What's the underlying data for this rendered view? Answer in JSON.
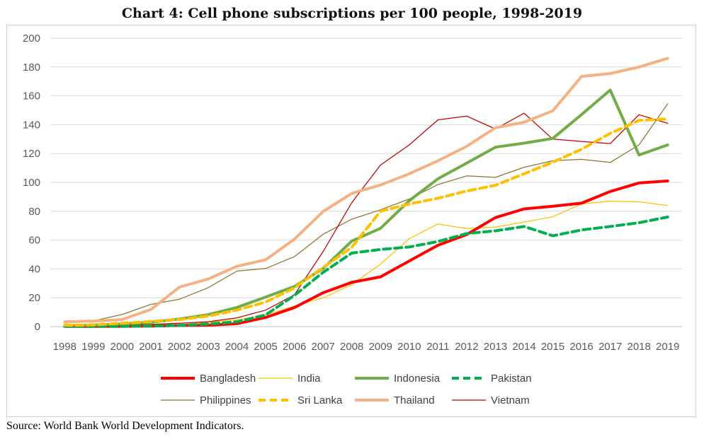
{
  "title": "Chart 4: Cell phone subscriptions per 100 people, 1998-2019",
  "source": "Source: World Bank World Development Indicators.",
  "chart_data": {
    "type": "line",
    "title": "Chart 4: Cell phone subscriptions per 100 people, 1998-2019",
    "xlabel": "",
    "ylabel": "",
    "x": [
      "1998",
      "1999",
      "2000",
      "2001",
      "2002",
      "2003",
      "2004",
      "2005",
      "2006",
      "2007",
      "2008",
      "2009",
      "2010",
      "2011",
      "2012",
      "2013",
      "2014",
      "2015",
      "2016",
      "2017",
      "2018",
      "2019"
    ],
    "ylim": [
      0,
      200
    ],
    "yticks": [
      0,
      20,
      40,
      60,
      80,
      100,
      120,
      140,
      160,
      180,
      200
    ],
    "grid": true,
    "legend_position": "bottom",
    "series": [
      {
        "name": "Bangladesh",
        "color": "#ff0000",
        "style": "solid",
        "weight": "thick",
        "values": [
          0.1,
          0.1,
          0.2,
          0.4,
          0.8,
          1.0,
          2.0,
          6.3,
          13.2,
          23.5,
          30.7,
          34.5,
          45.5,
          56.4,
          63.8,
          75.6,
          81.6,
          83.5,
          85.6,
          93.7,
          99.6,
          101.0
        ]
      },
      {
        "name": "India",
        "color": "#ffc000",
        "style": "solid",
        "weight": "thin",
        "values": [
          0.1,
          0.2,
          0.3,
          0.6,
          1.2,
          3.1,
          4.7,
          8.0,
          14.3,
          19.9,
          29.1,
          43.3,
          61.0,
          71.2,
          68.0,
          69.0,
          72.5,
          76.2,
          85.0,
          87.0,
          86.5,
          84.0
        ]
      },
      {
        "name": "Indonesia",
        "color": "#70ad47",
        "style": "solid",
        "weight": "thick",
        "values": [
          0.5,
          1.1,
          1.8,
          3.0,
          5.3,
          8.3,
          13.3,
          20.5,
          27.8,
          40.3,
          59.3,
          68.2,
          87.3,
          102.5,
          113.4,
          124.4,
          127.2,
          130.5,
          147.0,
          164.0,
          119.0,
          126.0
        ]
      },
      {
        "name": "Pakistan",
        "color": "#00b050",
        "style": "dashed",
        "weight": "thick",
        "values": [
          0.2,
          0.2,
          0.2,
          0.5,
          0.8,
          1.8,
          3.3,
          8.1,
          21.6,
          37.6,
          51.0,
          53.5,
          55.2,
          59.0,
          64.5,
          66.4,
          69.4,
          63.0,
          67.0,
          69.4,
          72.0,
          76.0
        ]
      },
      {
        "name": "Philippines",
        "color": "#8c7530",
        "style": "solid",
        "weight": "thin",
        "values": [
          2.5,
          4.0,
          8.4,
          15.4,
          19.0,
          27.0,
          38.5,
          40.3,
          48.5,
          64.0,
          74.5,
          81.0,
          88.5,
          98.5,
          104.5,
          103.5,
          110.5,
          115.0,
          116.0,
          113.8,
          126.0,
          154.5
        ]
      },
      {
        "name": "Sri Lanka",
        "color": "#ffc000",
        "style": "dashed",
        "weight": "thick",
        "values": [
          0.9,
          1.2,
          2.3,
          3.6,
          4.9,
          7.3,
          11.4,
          17.0,
          26.8,
          41.0,
          55.0,
          80.0,
          85.0,
          89.0,
          94.0,
          98.0,
          106.0,
          114.0,
          123.0,
          134.0,
          143.0,
          144.0
        ]
      },
      {
        "name": "Thailand",
        "color": "#f4b183",
        "style": "solid",
        "weight": "thick",
        "values": [
          3.3,
          3.8,
          4.9,
          11.8,
          27.4,
          33.0,
          41.8,
          46.3,
          60.6,
          79.8,
          92.4,
          98.2,
          106.0,
          115.0,
          125.0,
          137.9,
          141.7,
          149.6,
          173.5,
          175.5,
          180.0,
          186.0
        ]
      },
      {
        "name": "Vietnam",
        "color": "#c00000",
        "style": "solid",
        "weight": "thin",
        "values": [
          0.2,
          0.4,
          1.0,
          1.5,
          2.3,
          3.4,
          6.1,
          11.4,
          22.0,
          52.0,
          86.0,
          112.0,
          126.0,
          143.4,
          146.0,
          137.0,
          148.0,
          130.0,
          128.4,
          126.9,
          146.9,
          141.0
        ]
      }
    ]
  }
}
